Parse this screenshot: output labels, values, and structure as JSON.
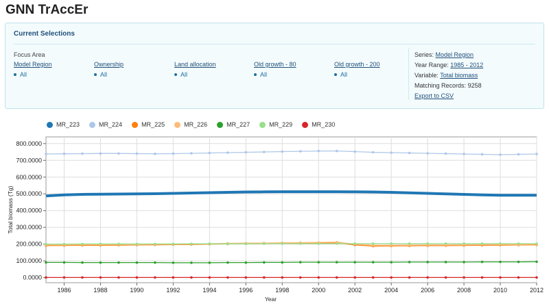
{
  "app": {
    "title": "GNN TrAccEr"
  },
  "selections": {
    "title": "Current Selections",
    "focus_label": "Focus Area",
    "filters": [
      {
        "label": "Model Region",
        "value": "All"
      },
      {
        "label": "Ownership",
        "value": "All"
      },
      {
        "label": "Land allocation",
        "value": "All"
      },
      {
        "label": "Old growth - 80",
        "value": "All"
      },
      {
        "label": "Old growth - 200",
        "value": "All"
      }
    ],
    "info": {
      "series_label": "Series:",
      "series_value": "Model Region",
      "year_range_label": "Year Range:",
      "year_range_value": "1985 - 2012",
      "variable_label": "Variable:",
      "variable_value": "Total biomass",
      "matching_label": "Matching Records:",
      "matching_value": "9258",
      "export_label": "Export to CSV"
    }
  },
  "colors": {
    "MR_223": "#1f77b4",
    "MR_224": "#aec7e8",
    "MR_225": "#ff7f0e",
    "MR_226": "#ffbb78",
    "MR_227": "#2ca02c",
    "MR_229": "#98df8a",
    "MR_230": "#d62728"
  },
  "chart_data": {
    "type": "line",
    "xlabel": "Year",
    "ylabel": "Total biomass (Tg)",
    "xlim": [
      1985,
      2012
    ],
    "ylim": [
      -30,
      840
    ],
    "xticks": [
      "1986",
      "1988",
      "1990",
      "1992",
      "1994",
      "1996",
      "1998",
      "2000",
      "2002",
      "2004",
      "2006",
      "2008",
      "2010",
      "2012"
    ],
    "yticks": [
      "0.0000",
      "100.0000",
      "200.0000",
      "300.0000",
      "400.0000",
      "500.0000",
      "600.0000",
      "700.0000",
      "800.0000"
    ],
    "grid": true,
    "legend_position": "top",
    "x": [
      1985,
      1986,
      1987,
      1988,
      1989,
      1990,
      1991,
      1992,
      1993,
      1994,
      1995,
      1996,
      1997,
      1998,
      1999,
      2000,
      2001,
      2002,
      2003,
      2004,
      2005,
      2006,
      2007,
      2008,
      2009,
      2010,
      2011,
      2012
    ],
    "series": [
      {
        "name": "MR_223",
        "values": [
          488,
          494,
          497,
          498,
          499,
          500,
          501,
          503,
          505,
          507,
          509,
          511,
          512,
          513,
          513,
          513,
          513,
          512,
          511,
          509,
          506,
          503,
          500,
          497,
          494,
          492,
          492,
          492
        ]
      },
      {
        "name": "MR_224",
        "values": [
          738,
          739,
          740,
          741,
          741,
          740,
          739,
          740,
          742,
          744,
          746,
          748,
          750,
          752,
          754,
          756,
          756,
          752,
          748,
          746,
          744,
          742,
          740,
          738,
          736,
          734,
          736,
          738
        ]
      },
      {
        "name": "MR_225",
        "values": [
          191,
          192,
          193,
          193,
          194,
          195,
          196,
          197,
          198,
          200,
          201,
          202,
          203,
          204,
          205,
          206,
          207,
          195,
          188,
          189,
          190,
          191,
          191,
          192,
          193,
          194,
          195,
          196
        ]
      },
      {
        "name": "MR_226",
        "values": [
          195,
          196,
          197,
          197,
          198,
          198,
          199,
          200,
          201,
          203,
          205,
          206,
          207,
          208,
          209,
          210,
          212,
          200,
          193,
          193,
          194,
          195,
          195,
          196,
          197,
          198,
          198,
          199
        ]
      },
      {
        "name": "MR_227",
        "values": [
          91,
          91,
          90,
          90,
          90,
          90,
          90,
          89,
          89,
          89,
          90,
          90,
          91,
          91,
          92,
          92,
          92,
          92,
          92,
          92,
          93,
          93,
          93,
          93,
          94,
          94,
          94,
          95
        ]
      },
      {
        "name": "MR_229",
        "values": [
          200,
          200,
          201,
          201,
          201,
          201,
          201,
          201,
          202,
          202,
          202,
          202,
          203,
          203,
          203,
          203,
          203,
          203,
          203,
          203,
          203,
          203,
          203,
          203,
          203,
          203,
          203,
          203
        ]
      },
      {
        "name": "MR_230",
        "values": [
          1,
          1,
          1,
          1,
          1,
          1,
          1,
          1,
          1,
          1,
          1,
          1,
          1,
          1,
          1,
          1,
          1,
          1,
          1,
          1,
          1,
          1,
          1,
          1,
          1,
          1,
          1,
          1
        ]
      }
    ]
  }
}
